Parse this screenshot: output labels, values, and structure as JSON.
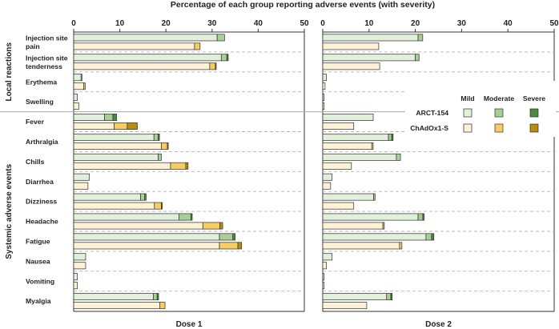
{
  "chart_data": {
    "type": "bar",
    "orientation": "horizontal",
    "stacked": true,
    "title": "Percentage of each group reporting adverse events (with severity)",
    "xlim": [
      0,
      50
    ],
    "xticks": [
      "0",
      "10",
      "20",
      "30",
      "40",
      "50"
    ],
    "panels": [
      {
        "label": "Dose 1",
        "key": "dose1"
      },
      {
        "label": "Dose 2",
        "key": "dose2"
      }
    ],
    "groups": [
      "Local reactions",
      "Systemic adverse events"
    ],
    "legend": {
      "severities": [
        "Mild",
        "Moderate",
        "Severe"
      ],
      "vaccines": [
        {
          "name": "ARCT-154",
          "colors": [
            "#e2efdb",
            "#a6d096",
            "#4e8a3c"
          ]
        },
        {
          "name": "ChAdOx1-S",
          "colors": [
            "#fdf1d6",
            "#f6cd62",
            "#b88d0d"
          ]
        }
      ]
    },
    "categories": [
      {
        "label": "Injection site pain",
        "group": 0,
        "dose1": {
          "arct": [
            31.1,
            1.6,
            0
          ],
          "chad": [
            26.2,
            1.2,
            0
          ]
        },
        "dose2": {
          "arct": [
            20.6,
            1.0,
            0
          ],
          "chad": [
            12.1,
            0,
            0
          ]
        }
      },
      {
        "label": "Injection site tenderness",
        "group": 0,
        "dose1": {
          "arct": [
            32.0,
            1.2,
            0.3
          ],
          "chad": [
            29.5,
            1.2,
            0.2
          ]
        },
        "dose2": {
          "arct": [
            20.0,
            0.8,
            0
          ],
          "chad": [
            12.3,
            0,
            0
          ]
        }
      },
      {
        "label": "Erythema",
        "group": 0,
        "dose1": {
          "arct": [
            1.6,
            0.2,
            0
          ],
          "chad": [
            2.2,
            0.3,
            0
          ]
        },
        "dose2": {
          "arct": [
            0.8,
            0,
            0
          ],
          "chad": [
            0.5,
            0,
            0
          ]
        }
      },
      {
        "label": "Swelling",
        "group": 0,
        "dose1": {
          "arct": [
            0.8,
            0,
            0
          ],
          "chad": [
            1.1,
            0,
            0
          ]
        },
        "dose2": {
          "arct": [
            0.3,
            0,
            0
          ],
          "chad": [
            0.3,
            0,
            0
          ]
        }
      },
      {
        "label": "Fever",
        "group": 1,
        "dose1": {
          "arct": [
            6.7,
            1.8,
            0.8
          ],
          "chad": [
            8.8,
            2.8,
            2.2
          ]
        },
        "dose2": {
          "arct": [
            10.9,
            0,
            0
          ],
          "chad": [
            6.7,
            0,
            0
          ]
        }
      },
      {
        "label": "Arthralgia",
        "group": 1,
        "dose1": {
          "arct": [
            17.4,
            0.9,
            0.3
          ],
          "chad": [
            19.0,
            1.3,
            0.2
          ]
        },
        "dose2": {
          "arct": [
            14.2,
            0.7,
            0.3
          ],
          "chad": [
            10.6,
            0.3,
            0
          ]
        }
      },
      {
        "label": "Chills",
        "group": 1,
        "dose1": {
          "arct": [
            18.3,
            0.7,
            0
          ],
          "chad": [
            21.0,
            3.3,
            0.5
          ]
        },
        "dose2": {
          "arct": [
            15.9,
            0.9,
            0
          ],
          "chad": [
            6.2,
            0,
            0
          ]
        }
      },
      {
        "label": "Diarrhea",
        "group": 1,
        "dose1": {
          "arct": [
            3.4,
            0,
            0
          ],
          "chad": [
            3.1,
            0,
            0
          ]
        },
        "dose2": {
          "arct": [
            2.0,
            0,
            0
          ],
          "chad": [
            1.7,
            0,
            0
          ]
        }
      },
      {
        "label": "Dizziness",
        "group": 1,
        "dose1": {
          "arct": [
            14.5,
            0.9,
            0.3
          ],
          "chad": [
            17.5,
            1.5,
            0.2
          ]
        },
        "dose2": {
          "arct": [
            11.0,
            0.3,
            0
          ],
          "chad": [
            6.7,
            0,
            0
          ]
        }
      },
      {
        "label": "Headache",
        "group": 1,
        "dose1": {
          "arct": [
            22.8,
            2.6,
            0.3
          ],
          "chad": [
            28.0,
            3.7,
            0.6
          ]
        },
        "dose2": {
          "arct": [
            20.6,
            1.0,
            0.3
          ],
          "chad": [
            13.0,
            0.3,
            0
          ]
        }
      },
      {
        "label": "Fatigue",
        "group": 1,
        "dose1": {
          "arct": [
            31.6,
            2.9,
            0.5
          ],
          "chad": [
            31.6,
            4.0,
            0.8
          ]
        },
        "dose2": {
          "arct": [
            22.3,
            1.2,
            0.5
          ],
          "chad": [
            16.6,
            0.5,
            0
          ]
        }
      },
      {
        "label": "Nausea",
        "group": 1,
        "dose1": {
          "arct": [
            2.6,
            0,
            0
          ],
          "chad": [
            2.6,
            0,
            0
          ]
        },
        "dose2": {
          "arct": [
            2.0,
            0,
            0
          ],
          "chad": [
            0.8,
            0,
            0
          ]
        }
      },
      {
        "label": "Vomiting",
        "group": 1,
        "dose1": {
          "arct": [
            0.8,
            0,
            0
          ],
          "chad": [
            0.8,
            0,
            0
          ]
        },
        "dose2": {
          "arct": [
            0.3,
            0,
            0
          ],
          "chad": [
            0.3,
            0,
            0
          ]
        }
      },
      {
        "label": "Myalgia",
        "group": 1,
        "dose1": {
          "arct": [
            17.3,
            0.8,
            0.3
          ],
          "chad": [
            18.7,
            1.1,
            0
          ]
        },
        "dose2": {
          "arct": [
            13.8,
            0.9,
            0.3
          ],
          "chad": [
            9.5,
            0,
            0
          ]
        }
      }
    ]
  }
}
